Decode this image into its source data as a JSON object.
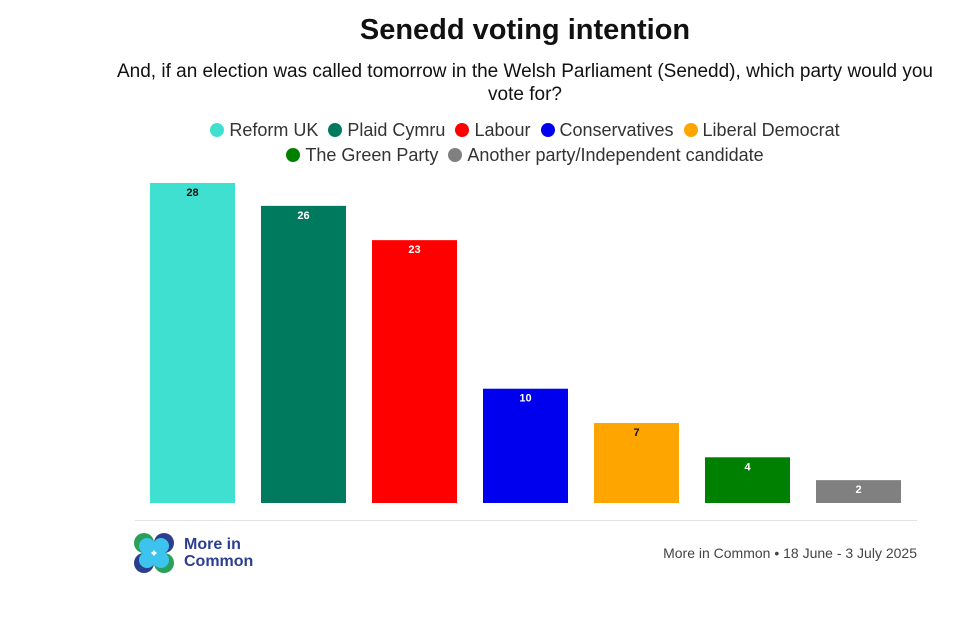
{
  "chart_data": {
    "type": "bar",
    "title": "Senedd voting intention",
    "subtitle": "And, if an election was called tomorrow in the Welsh Parliament (Senedd), which party would you vote for?",
    "categories": [
      "Reform UK",
      "Plaid Cymru",
      "Labour",
      "Conservatives",
      "Liberal Democrat",
      "The Green Party",
      "Another party/Independent candidate"
    ],
    "values": [
      28,
      26,
      23,
      10,
      7,
      4,
      2
    ],
    "colors": [
      "#40e0d0",
      "#007a5e",
      "#ff0000",
      "#0000ee",
      "#ffa500",
      "#008000",
      "#808080"
    ],
    "label_colors": [
      "#111111",
      "#ffffff",
      "#ffffff",
      "#ffffff",
      "#111111",
      "#ffffff",
      "#ffffff"
    ],
    "ylim": [
      0,
      28
    ],
    "grid": false,
    "legend_position": "top"
  },
  "footer": {
    "logo_text_line1": "More in",
    "logo_text_line2": "Common",
    "source": "More in Common • 18 June - 3 July 2025"
  }
}
